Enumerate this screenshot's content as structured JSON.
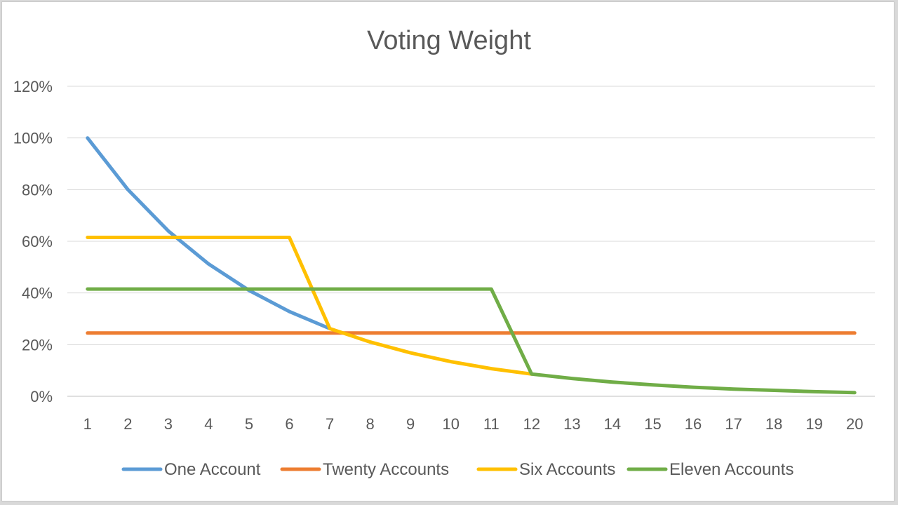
{
  "chart_data": {
    "type": "line",
    "title": "Voting Weight",
    "xlabel": "",
    "ylabel": "",
    "x": [
      1,
      2,
      3,
      4,
      5,
      6,
      7,
      8,
      9,
      10,
      11,
      12,
      13,
      14,
      15,
      16,
      17,
      18,
      19,
      20
    ],
    "y_ticks": [
      "0%",
      "20%",
      "40%",
      "60%",
      "80%",
      "100%",
      "120%"
    ],
    "ylim": [
      0,
      120
    ],
    "grid": true,
    "legend_position": "bottom",
    "series": [
      {
        "name": "One Account",
        "color": "#5b9bd5",
        "values": [
          100,
          80,
          64,
          51.2,
          41,
          32.8,
          26.2,
          null,
          null,
          null,
          null,
          null,
          null,
          null,
          null,
          null,
          null,
          null,
          null,
          null
        ]
      },
      {
        "name": "Twenty Accounts",
        "color": "#ed7d31",
        "values": [
          24.5,
          24.5,
          24.5,
          24.5,
          24.5,
          24.5,
          24.5,
          24.5,
          24.5,
          24.5,
          24.5,
          24.5,
          24.5,
          24.5,
          24.5,
          24.5,
          24.5,
          24.5,
          24.5,
          24.5
        ]
      },
      {
        "name": "Six Accounts",
        "color": "#ffc000",
        "values": [
          61.5,
          61.5,
          61.5,
          61.5,
          61.5,
          61.5,
          26.2,
          21,
          16.8,
          13.4,
          10.7,
          8.6,
          null,
          null,
          null,
          null,
          null,
          null,
          null,
          null
        ]
      },
      {
        "name": "Eleven Accounts",
        "color": "#70ad47",
        "values": [
          41.5,
          41.5,
          41.5,
          41.5,
          41.5,
          41.5,
          41.5,
          41.5,
          41.5,
          41.5,
          41.5,
          8.6,
          6.9,
          5.5,
          4.4,
          3.5,
          2.8,
          2.3,
          1.8,
          1.4
        ]
      }
    ]
  }
}
